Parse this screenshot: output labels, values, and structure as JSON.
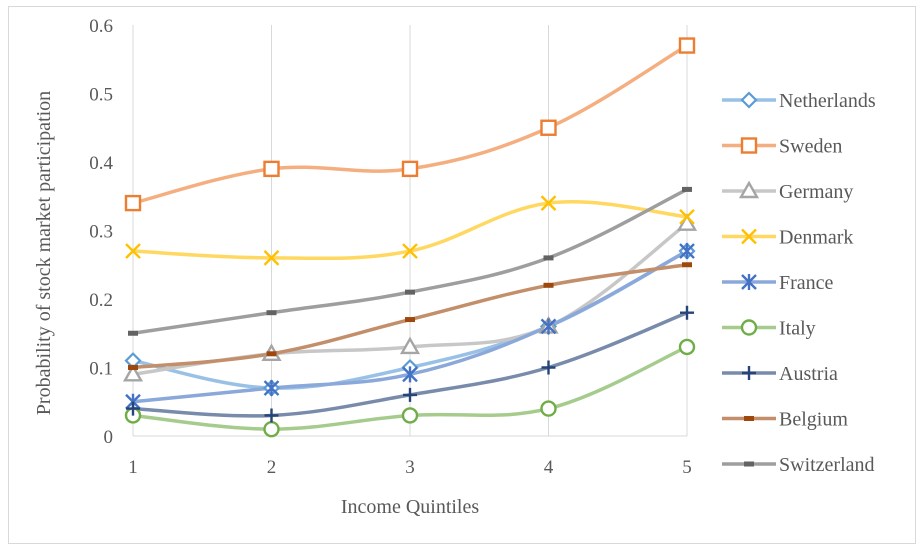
{
  "chart_data": {
    "type": "line",
    "title": "",
    "xlabel": "Income Quintiles",
    "ylabel": "Probability of stock market participation",
    "x": [
      1,
      2,
      3,
      4,
      5
    ],
    "xticks": [
      "1",
      "2",
      "3",
      "4",
      "5"
    ],
    "ylim": [
      0,
      0.6
    ],
    "yticks": [
      "0",
      "0.1",
      "0.2",
      "0.3",
      "0.4",
      "0.5",
      "0.6"
    ],
    "grid": "vertical",
    "legend_position": "right",
    "smoothed": true,
    "series": [
      {
        "name": "Netherlands",
        "values": [
          0.11,
          0.07,
          0.1,
          0.16,
          0.27
        ],
        "color": "#5b9bd5",
        "marker": "diamond"
      },
      {
        "name": "Sweden",
        "values": [
          0.34,
          0.39,
          0.39,
          0.45,
          0.57
        ],
        "color": "#ed7d31",
        "marker": "square"
      },
      {
        "name": "Germany",
        "values": [
          0.09,
          0.12,
          0.13,
          0.16,
          0.31
        ],
        "color": "#a5a5a5",
        "marker": "triangle"
      },
      {
        "name": "Denmark",
        "values": [
          0.27,
          0.26,
          0.27,
          0.34,
          0.32
        ],
        "color": "#ffc000",
        "marker": "x"
      },
      {
        "name": "France",
        "values": [
          0.05,
          0.07,
          0.09,
          0.16,
          0.27
        ],
        "color": "#4472c4",
        "marker": "star"
      },
      {
        "name": "Italy",
        "values": [
          0.03,
          0.01,
          0.03,
          0.04,
          0.13
        ],
        "color": "#70ad47",
        "marker": "circle"
      },
      {
        "name": "Austria",
        "values": [
          0.04,
          0.03,
          0.06,
          0.1,
          0.18
        ],
        "color": "#264478",
        "marker": "plus"
      },
      {
        "name": "Belgium",
        "values": [
          0.1,
          0.12,
          0.17,
          0.22,
          0.25
        ],
        "color": "#9e480e",
        "marker": "dash"
      },
      {
        "name": "Switzerland",
        "values": [
          0.15,
          0.18,
          0.21,
          0.26,
          0.36
        ],
        "color": "#636363",
        "marker": "dash"
      }
    ]
  }
}
